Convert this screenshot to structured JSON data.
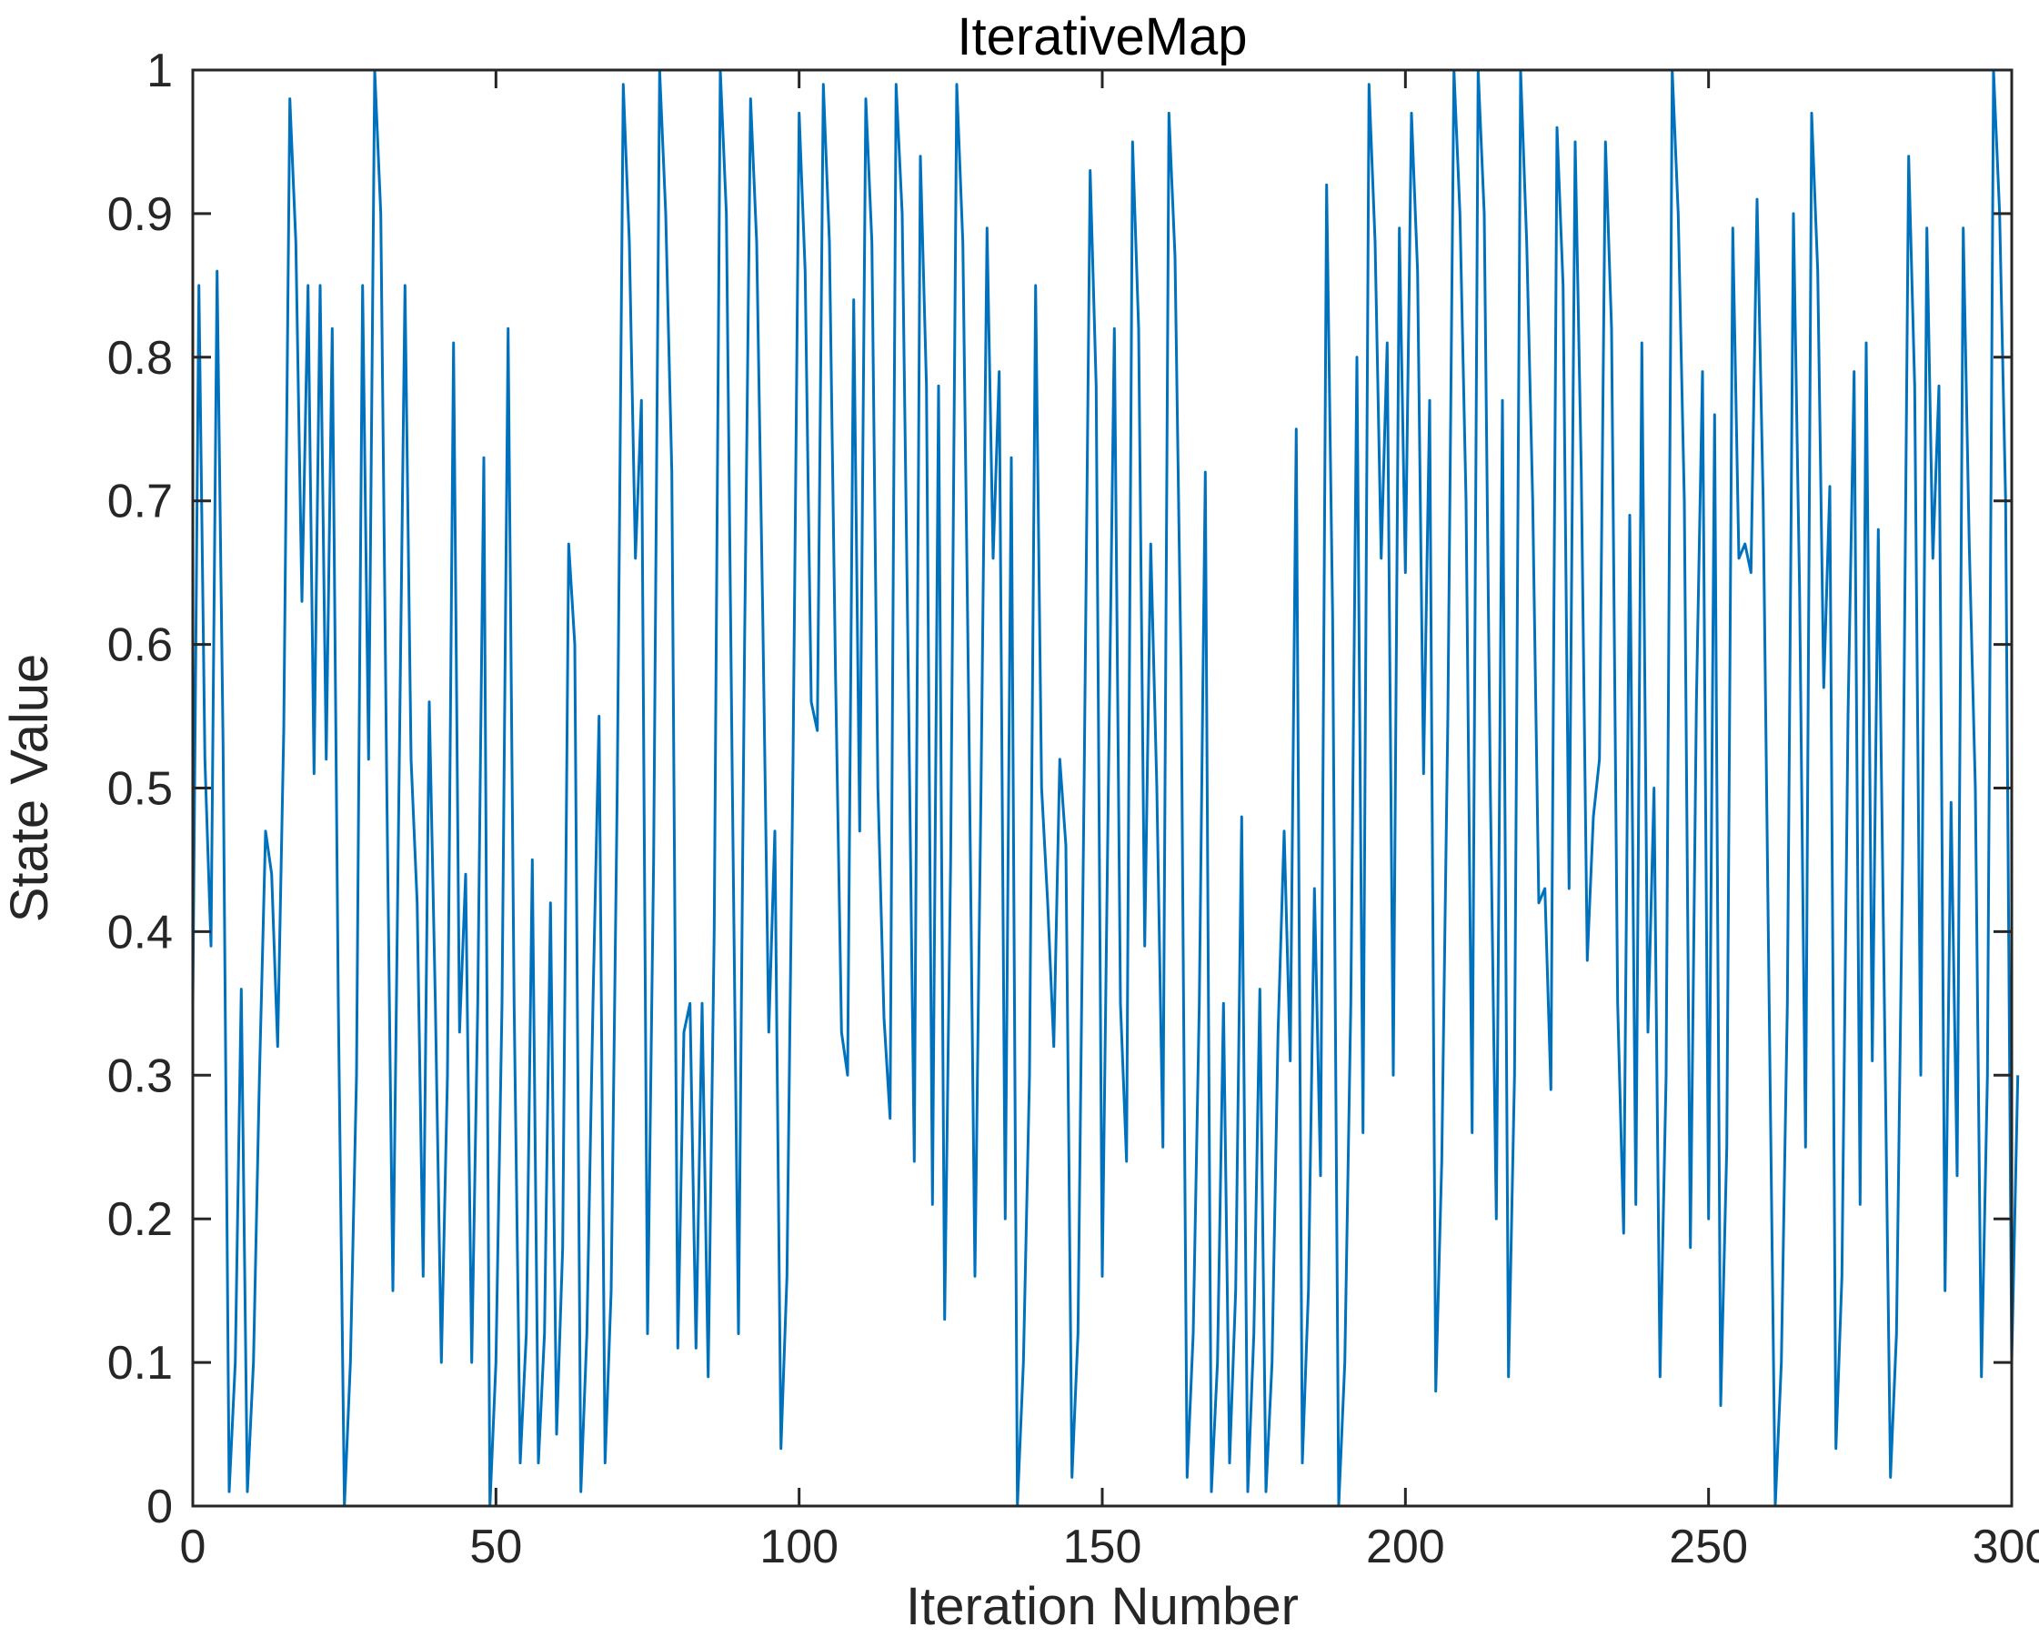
{
  "chart_data": {
    "type": "line",
    "title": "IterativeMap",
    "xlabel": "Iteration Number",
    "ylabel": "State Value",
    "xlim": [
      0,
      300
    ],
    "ylim": [
      0,
      1
    ],
    "grid": false,
    "xticks": [
      0,
      50,
      100,
      150,
      200,
      250,
      300
    ],
    "xtick_labels": [
      "0",
      "50",
      "100",
      "150",
      "200",
      "250",
      "300"
    ],
    "yticks": [
      0,
      0.1,
      0.2,
      0.3,
      0.4,
      0.5,
      0.6,
      0.7,
      0.8,
      0.9,
      1
    ],
    "ytick_labels": [
      "0",
      "0.1",
      "0.2",
      "0.3",
      "0.4",
      "0.5",
      "0.6",
      "0.7",
      "0.8",
      "0.9",
      "1"
    ],
    "series": [
      {
        "color": "#0072BD",
        "x_start": 0,
        "x_step": 1,
        "values": [
          0.35,
          0.85,
          0.52,
          0.39,
          0.86,
          0.53,
          0.01,
          0.1,
          0.36,
          0.01,
          0.1,
          0.3,
          0.47,
          0.44,
          0.32,
          0.54,
          0.98,
          0.88,
          0.63,
          0.85,
          0.51,
          0.85,
          0.52,
          0.82,
          0.35,
          0.0,
          0.1,
          0.3,
          0.85,
          0.52,
          1.0,
          0.9,
          0.5,
          0.15,
          0.5,
          0.85,
          0.52,
          0.42,
          0.16,
          0.56,
          0.35,
          0.1,
          0.3,
          0.81,
          0.33,
          0.44,
          0.1,
          0.35,
          0.73,
          0.0,
          0.1,
          0.35,
          0.82,
          0.35,
          0.03,
          0.12,
          0.45,
          0.03,
          0.12,
          0.42,
          0.05,
          0.18,
          0.67,
          0.6,
          0.01,
          0.12,
          0.35,
          0.55,
          0.03,
          0.15,
          0.5,
          0.99,
          0.88,
          0.66,
          0.77,
          0.12,
          0.45,
          1.0,
          0.9,
          0.72,
          0.11,
          0.33,
          0.35,
          0.11,
          0.35,
          0.09,
          0.4,
          1.0,
          0.9,
          0.5,
          0.12,
          0.6,
          0.98,
          0.88,
          0.62,
          0.33,
          0.47,
          0.04,
          0.16,
          0.52,
          0.97,
          0.86,
          0.56,
          0.54,
          0.99,
          0.88,
          0.58,
          0.33,
          0.3,
          0.84,
          0.47,
          0.98,
          0.88,
          0.5,
          0.34,
          0.27,
          0.99,
          0.9,
          0.58,
          0.24,
          0.94,
          0.78,
          0.21,
          0.78,
          0.13,
          0.45,
          0.99,
          0.88,
          0.55,
          0.16,
          0.5,
          0.89,
          0.66,
          0.79,
          0.2,
          0.73,
          0.0,
          0.1,
          0.3,
          0.85,
          0.5,
          0.42,
          0.32,
          0.52,
          0.46,
          0.02,
          0.12,
          0.5,
          0.93,
          0.78,
          0.16,
          0.5,
          0.82,
          0.35,
          0.24,
          0.95,
          0.82,
          0.39,
          0.67,
          0.5,
          0.25,
          0.97,
          0.87,
          0.58,
          0.02,
          0.12,
          0.35,
          0.72,
          0.01,
          0.1,
          0.35,
          0.03,
          0.15,
          0.48,
          0.01,
          0.12,
          0.36,
          0.01,
          0.1,
          0.33,
          0.47,
          0.31,
          0.75,
          0.03,
          0.15,
          0.43,
          0.23,
          0.92,
          0.62,
          0.0,
          0.1,
          0.35,
          0.8,
          0.26,
          0.99,
          0.88,
          0.66,
          0.81,
          0.3,
          0.89,
          0.65,
          0.97,
          0.86,
          0.51,
          0.77,
          0.08,
          0.24,
          0.55,
          1.0,
          0.9,
          0.7,
          0.26,
          1.0,
          0.9,
          0.5,
          0.2,
          0.77,
          0.09,
          0.3,
          1.0,
          0.88,
          0.7,
          0.42,
          0.43,
          0.29,
          0.96,
          0.85,
          0.43,
          0.95,
          0.72,
          0.38,
          0.48,
          0.52,
          0.95,
          0.82,
          0.35,
          0.19,
          0.69,
          0.21,
          0.81,
          0.33,
          0.5,
          0.09,
          0.3,
          1.0,
          0.9,
          0.7,
          0.18,
          0.56,
          0.79,
          0.2,
          0.76,
          0.07,
          0.25,
          0.89,
          0.66,
          0.67,
          0.65,
          0.91,
          0.7,
          0.35,
          0.0,
          0.1,
          0.35,
          0.9,
          0.64,
          0.25,
          0.97,
          0.86,
          0.57,
          0.71,
          0.04,
          0.16,
          0.55,
          0.79,
          0.21,
          0.81,
          0.31,
          0.68,
          0.35,
          0.02,
          0.12,
          0.45,
          0.94,
          0.78,
          0.3,
          0.89,
          0.66,
          0.78,
          0.15,
          0.49,
          0.23,
          0.89,
          0.67,
          0.5,
          0.09,
          0.3,
          1.0,
          0.9,
          0.7,
          0.1,
          0.3
        ]
      }
    ]
  }
}
